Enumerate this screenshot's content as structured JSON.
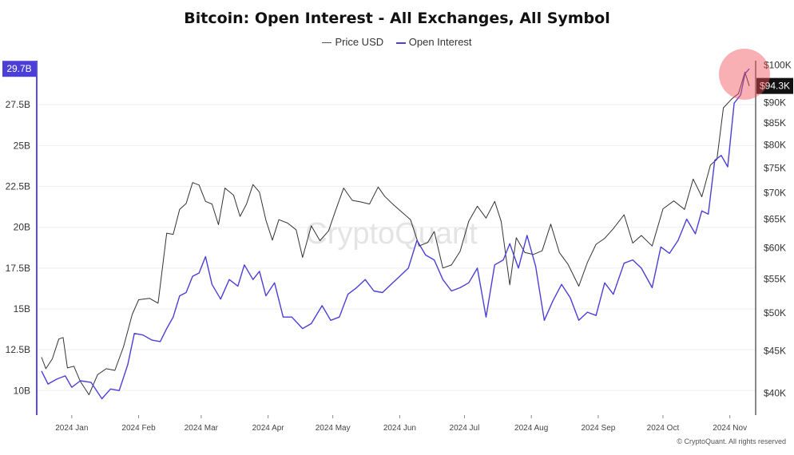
{
  "chart_data": {
    "type": "line",
    "title": "Bitcoin: Open Interest - All Exchanges, All Symbol",
    "watermark": "CryptoQuant",
    "footer": "© CryptoQuant. All rights reserved",
    "x_tick_labels": [
      "2024 Jan",
      "2024 Feb",
      "2024 Mar",
      "2024 Apr",
      "2024 May",
      "2024 Jun",
      "2024 Jul",
      "2024 Aug",
      "2024 Sep",
      "2024 Oct",
      "2024 Nov"
    ],
    "x_range": [
      "2024-01-01",
      "2024-11-24"
    ],
    "y_left": {
      "tick_labels": [
        "10B",
        "12.5B",
        "15B",
        "17.5B",
        "20B",
        "22.5B",
        "25B",
        "27.5B"
      ],
      "tick_values": [
        10,
        12.5,
        15,
        17.5,
        20,
        22.5,
        25,
        27.5
      ],
      "range": [
        8.5,
        30.2
      ],
      "unit": "B"
    },
    "y_right": {
      "tick_labels": [
        "$40K",
        "$45K",
        "$50K",
        "$55K",
        "$60K",
        "$65K",
        "$70K",
        "$75K",
        "$80K",
        "$85K",
        "$90K",
        "$100K"
      ],
      "tick_values": [
        40000,
        45000,
        50000,
        55000,
        60000,
        65000,
        70000,
        75000,
        80000,
        85000,
        90000,
        100000
      ],
      "range": [
        37600,
        101200
      ],
      "scale": "log"
    },
    "current_labels": {
      "open_interest": "29.7B",
      "price": "$94.3K"
    },
    "grid": "horizontal",
    "legend_position": "top-center",
    "highlight": "latest values circled in red",
    "series": [
      {
        "name": "Price USD",
        "axis": "right",
        "color": "#333333",
        "x": [
          "2024-01-01",
          "2024-01-03",
          "2024-01-06",
          "2024-01-09",
          "2024-01-11",
          "2024-01-13",
          "2024-01-16",
          "2024-01-19",
          "2024-01-23",
          "2024-01-27",
          "2024-01-31",
          "2024-02-04",
          "2024-02-08",
          "2024-02-12",
          "2024-02-15",
          "2024-02-20",
          "2024-02-24",
          "2024-02-28",
          "2024-03-02",
          "2024-03-05",
          "2024-03-08",
          "2024-03-11",
          "2024-03-14",
          "2024-03-17",
          "2024-03-20",
          "2024-03-23",
          "2024-03-26",
          "2024-03-30",
          "2024-04-02",
          "2024-04-05",
          "2024-04-08",
          "2024-04-11",
          "2024-04-14",
          "2024-04-17",
          "2024-04-20",
          "2024-04-24",
          "2024-04-28",
          "2024-05-01",
          "2024-05-05",
          "2024-05-09",
          "2024-05-13",
          "2024-05-16",
          "2024-05-20",
          "2024-05-24",
          "2024-05-28",
          "2024-06-01",
          "2024-06-05",
          "2024-06-08",
          "2024-06-12",
          "2024-06-16",
          "2024-06-20",
          "2024-06-24",
          "2024-06-28",
          "2024-07-01",
          "2024-07-05",
          "2024-07-09",
          "2024-07-13",
          "2024-07-17",
          "2024-07-21",
          "2024-07-25",
          "2024-07-29",
          "2024-08-01",
          "2024-08-05",
          "2024-08-08",
          "2024-08-12",
          "2024-08-16",
          "2024-08-20",
          "2024-08-24",
          "2024-08-28",
          "2024-09-01",
          "2024-09-06",
          "2024-09-10",
          "2024-09-14",
          "2024-09-18",
          "2024-09-22",
          "2024-09-27",
          "2024-10-01",
          "2024-10-05",
          "2024-10-10",
          "2024-10-15",
          "2024-10-20",
          "2024-10-25",
          "2024-10-29",
          "2024-11-02",
          "2024-11-06",
          "2024-11-09",
          "2024-11-12",
          "2024-11-16",
          "2024-11-19",
          "2024-11-22",
          "2024-11-24"
        ],
        "values": [
          44200,
          42800,
          44000,
          46500,
          46700,
          42900,
          43100,
          41300,
          39800,
          42100,
          42800,
          42600,
          45500,
          49800,
          51900,
          52100,
          51400,
          62500,
          62300,
          66800,
          67900,
          72000,
          71500,
          68300,
          67800,
          64000,
          70900,
          69500,
          65500,
          67800,
          71600,
          70100,
          64800,
          61300,
          64900,
          64300,
          63100,
          58400,
          63800,
          61200,
          62900,
          66300,
          70900,
          68500,
          68200,
          67800,
          71100,
          69300,
          67700,
          66300,
          64900,
          60300,
          60900,
          62800,
          56700,
          57200,
          59400,
          64600,
          67400,
          65200,
          68300,
          64600,
          54100,
          61700,
          59200,
          58900,
          59500,
          64100,
          59200,
          57300,
          53900,
          57600,
          60600,
          61600,
          63300,
          65800,
          60800,
          62100,
          60300,
          66900,
          68400,
          66800,
          72700,
          69200,
          75600,
          76800,
          88700,
          91000,
          92300,
          98000,
          94300
        ]
      },
      {
        "name": "Open Interest",
        "axis": "left",
        "color": "#4b3fd6",
        "x": [
          "2024-01-01",
          "2024-01-04",
          "2024-01-08",
          "2024-01-12",
          "2024-01-15",
          "2024-01-19",
          "2024-01-24",
          "2024-01-29",
          "2024-02-02",
          "2024-02-06",
          "2024-02-10",
          "2024-02-13",
          "2024-02-17",
          "2024-02-21",
          "2024-02-25",
          "2024-02-28",
          "2024-03-02",
          "2024-03-05",
          "2024-03-08",
          "2024-03-11",
          "2024-03-14",
          "2024-03-17",
          "2024-03-20",
          "2024-03-24",
          "2024-03-28",
          "2024-04-01",
          "2024-04-04",
          "2024-04-08",
          "2024-04-11",
          "2024-04-14",
          "2024-04-18",
          "2024-04-22",
          "2024-04-26",
          "2024-05-01",
          "2024-05-05",
          "2024-05-10",
          "2024-05-14",
          "2024-05-18",
          "2024-05-22",
          "2024-05-26",
          "2024-05-30",
          "2024-06-03",
          "2024-06-07",
          "2024-06-11",
          "2024-06-15",
          "2024-06-19",
          "2024-06-23",
          "2024-06-27",
          "2024-07-01",
          "2024-07-05",
          "2024-07-09",
          "2024-07-13",
          "2024-07-17",
          "2024-07-21",
          "2024-07-25",
          "2024-07-29",
          "2024-08-02",
          "2024-08-05",
          "2024-08-09",
          "2024-08-13",
          "2024-08-17",
          "2024-08-21",
          "2024-08-25",
          "2024-08-29",
          "2024-09-02",
          "2024-09-06",
          "2024-09-10",
          "2024-09-14",
          "2024-09-18",
          "2024-09-22",
          "2024-09-27",
          "2024-10-01",
          "2024-10-05",
          "2024-10-10",
          "2024-10-14",
          "2024-10-18",
          "2024-10-22",
          "2024-10-26",
          "2024-10-30",
          "2024-11-02",
          "2024-11-05",
          "2024-11-08",
          "2024-11-11",
          "2024-11-14",
          "2024-11-17",
          "2024-11-20",
          "2024-11-22",
          "2024-11-24"
        ],
        "values": [
          11.2,
          10.4,
          10.7,
          10.9,
          10.2,
          10.6,
          10.5,
          9.5,
          10.1,
          10.0,
          11.6,
          13.5,
          13.4,
          13.1,
          13.0,
          13.8,
          14.5,
          15.8,
          16.0,
          17.0,
          17.2,
          18.2,
          16.5,
          15.6,
          16.8,
          16.4,
          17.7,
          16.8,
          17.3,
          15.8,
          16.6,
          14.5,
          14.5,
          13.8,
          14.1,
          15.2,
          14.3,
          14.5,
          15.9,
          16.3,
          16.8,
          16.1,
          16.0,
          16.5,
          17.0,
          17.5,
          19.2,
          18.3,
          18.0,
          16.8,
          16.1,
          16.3,
          16.6,
          17.5,
          14.5,
          17.7,
          18.0,
          19.0,
          17.5,
          19.5,
          17.6,
          14.3,
          15.5,
          16.5,
          15.7,
          14.3,
          14.8,
          14.6,
          16.6,
          15.9,
          17.8,
          18.0,
          17.5,
          16.3,
          18.8,
          18.4,
          19.2,
          20.5,
          19.6,
          21.0,
          20.8,
          24.1,
          24.4,
          23.7,
          27.6,
          28.1,
          29.4,
          29.7
        ]
      }
    ]
  }
}
